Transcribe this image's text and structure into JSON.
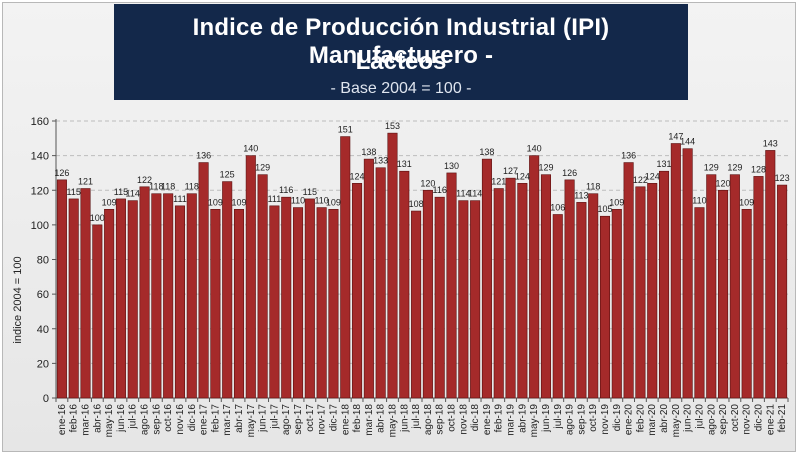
{
  "title": {
    "line1": "Indice de Producción Industrial (IPI) Manufacturero -",
    "line2": "Lácteos",
    "subtitle": "- Base 2004 = 100 -"
  },
  "colors": {
    "bar": "#a52a2a",
    "bar_edge": "#5a1010",
    "title_bg": "#13284a",
    "title_text": "#ffffff"
  },
  "chart_data": {
    "type": "bar",
    "title": "Indice de Producción Industrial (IPI) Manufacturero - Lácteos",
    "subtitle": "- Base 2004 = 100 -",
    "xlabel": "",
    "ylabel": "indice 2004 = 100",
    "ylim": [
      0,
      160
    ],
    "yticks": [
      0,
      20,
      40,
      60,
      80,
      100,
      120,
      140,
      160
    ],
    "grid": true,
    "categories": [
      "ene-16",
      "feb-16",
      "mar-16",
      "abr-16",
      "may-16",
      "jun-16",
      "jul-16",
      "ago-16",
      "sep-16",
      "oct-16",
      "nov-16",
      "dic-16",
      "ene-17",
      "feb-17",
      "mar-17",
      "abr-17",
      "may-17",
      "jun-17",
      "jul-17",
      "ago-17",
      "sep-17",
      "oct-17",
      "nov-17",
      "dic-17",
      "ene-18",
      "feb-18",
      "mar-18",
      "abr-18",
      "may-18",
      "jun-18",
      "jul-18",
      "ago-18",
      "sep-18",
      "oct-18",
      "nov-18",
      "dic-18",
      "ene-19",
      "feb-19",
      "mar-19",
      "abr-19",
      "may-19",
      "jun-19",
      "jul-19",
      "ago-19",
      "sep-19",
      "oct-19",
      "nov-19",
      "dic-19",
      "ene-20",
      "feb-20",
      "mar-20",
      "abr-20",
      "may-20",
      "jun-20",
      "jul-20",
      "ago-20",
      "sep-20",
      "oct-20",
      "nov-20",
      "dic-20",
      "ene-21",
      "feb-21"
    ],
    "values": [
      126,
      115,
      121,
      100,
      109,
      115,
      114,
      122,
      118,
      118,
      111,
      118,
      136,
      109,
      125,
      109,
      140,
      129,
      111,
      116,
      110,
      115,
      110,
      109,
      151,
      124,
      138,
      133,
      153,
      131,
      108,
      120,
      116,
      130,
      114,
      114,
      138,
      121,
      127,
      124,
      140,
      129,
      106,
      126,
      113,
      118,
      105,
      109,
      136,
      122,
      124,
      131,
      147,
      144,
      110,
      129,
      120,
      129,
      109,
      128,
      143,
      123
    ],
    "x_tick_labels": [
      "ene-16",
      "feb-16",
      "mar-16",
      "abr-16",
      "may-16",
      "jun-16",
      "jul-16",
      "ago-16",
      "sep-16",
      "oct-16",
      "nov-16",
      "dic-16",
      "ene-17",
      "feb-17",
      "mar-17",
      "abr-17",
      "may-17",
      "jun-17",
      "jul-17",
      "ago-17",
      "sep-17",
      "oct-17",
      "nov-17",
      "dic-17",
      "ene-18",
      "feb-18",
      "mar-18",
      "abr-18",
      "may-18",
      "jun-18",
      "jul-18",
      "ago-18",
      "sep-18",
      "oct-18",
      "nov-18",
      "dic-18",
      "ene-19",
      "feb-19",
      "mar-19",
      "abr-19",
      "may-19",
      "jun-19",
      "jul-19",
      "ago-19",
      "sep-19",
      "oct-19",
      "nov-19",
      "dic-19",
      "ene-20",
      "feb-20",
      "mar-20",
      "abr-20",
      "may-20",
      "jun-20",
      "jul-20",
      "ago-20",
      "sep-20",
      "oct-20",
      "nov-20",
      "dic-20",
      "ene-21",
      "feb-21"
    ]
  }
}
